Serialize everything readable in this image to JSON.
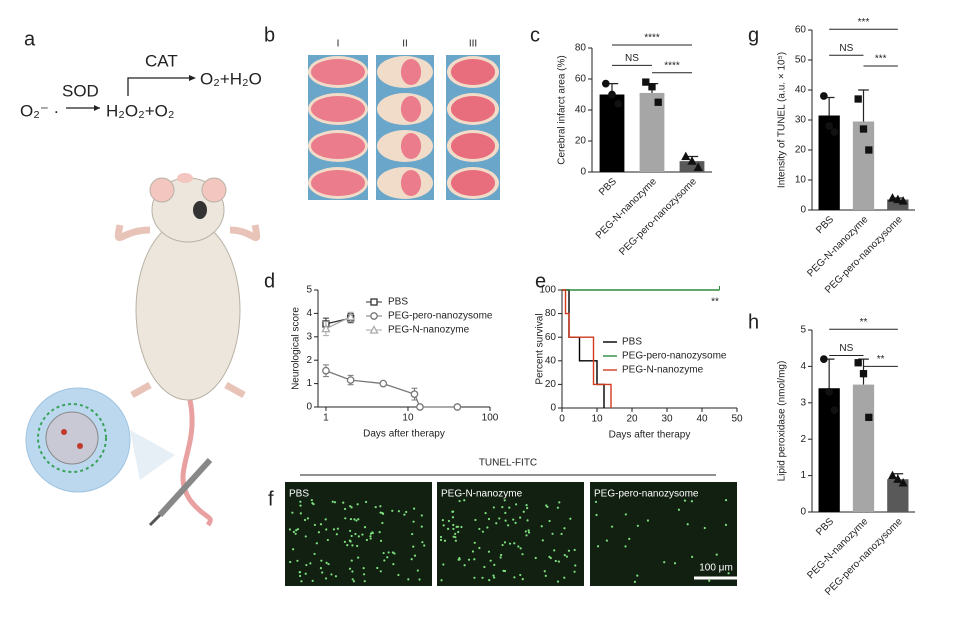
{
  "panel_labels": [
    "a",
    "b",
    "c",
    "d",
    "e",
    "f",
    "g",
    "h"
  ],
  "scheme": {
    "reactant": "O₂⁻ ·",
    "enzyme1": "SOD",
    "intermediate": "H₂O₂+O₂",
    "enzyme2": "CAT",
    "product": "O₂+H₂O"
  },
  "b_panel": {
    "groups": [
      "I",
      "II",
      "III"
    ]
  },
  "f_panel": {
    "title": "TUNEL-FITC",
    "labels": [
      "PBS",
      "PEG-N-nanozyme",
      "PEG-pero-nanozysome"
    ],
    "scale_bar": "100 μm"
  },
  "chart_data": [
    {
      "type": "bar",
      "ylabel": "Cerebral infarct area (%)",
      "categories": [
        "PBS",
        "PEG-N-nanozyme",
        "PEG-pero-nanozysome"
      ],
      "values": [
        50,
        51,
        7
      ],
      "errors": [
        7,
        6,
        3
      ],
      "points": [
        [
          57,
          50,
          44
        ],
        [
          58,
          55,
          45
        ],
        [
          10,
          7,
          3
        ]
      ],
      "colors": [
        "#000000",
        "#a6a6a6",
        "#595959"
      ],
      "annotations": [
        "NS",
        "****",
        "****"
      ],
      "ylim": [
        0,
        80
      ],
      "yticks": [
        0,
        20,
        40,
        60,
        80
      ]
    },
    {
      "type": "line",
      "xlabel": "Days after therapy",
      "ylabel": "Neurological score",
      "log_x": true,
      "xlim": [
        0.8,
        100
      ],
      "xticks": [
        1,
        10,
        100
      ],
      "ylim": [
        0,
        5
      ],
      "yticks": [
        0,
        1,
        2,
        3,
        4,
        5
      ],
      "series": [
        {
          "name": "PBS",
          "color": "#333333",
          "marker": "square",
          "x": [
            1,
            2
          ],
          "values": [
            3.55,
            3.8
          ],
          "errors": [
            0.25,
            0.2
          ]
        },
        {
          "name": "PEG-pero-nanozysome",
          "color": "#777777",
          "marker": "circle",
          "x": [
            1,
            2,
            5,
            12,
            14,
            40
          ],
          "values": [
            1.55,
            1.15,
            1.0,
            0.55,
            0,
            0
          ],
          "errors": [
            0.25,
            0.2,
            0.05,
            0.25,
            0,
            0
          ]
        },
        {
          "name": "PEG-N-nanozyme",
          "color": "#aaaaaa",
          "marker": "triangle",
          "x": [
            1,
            2
          ],
          "values": [
            3.35,
            3.85
          ],
          "errors": [
            0.3,
            0.2
          ]
        }
      ]
    },
    {
      "type": "step",
      "xlabel": "Days after therapy",
      "ylabel": "Percent survival",
      "annotation": "**",
      "xlim": [
        0,
        50
      ],
      "xticks": [
        0,
        10,
        20,
        30,
        40,
        50
      ],
      "ylim": [
        0,
        100
      ],
      "yticks": [
        0,
        20,
        40,
        60,
        80,
        100
      ],
      "series": [
        {
          "name": "PBS",
          "color": "#000000",
          "x": [
            0,
            2,
            5,
            10,
            12
          ],
          "values": [
            100,
            60,
            40,
            20,
            0
          ]
        },
        {
          "name": "PEG-pero-nanozysome",
          "color": "#2e8b3e",
          "x": [
            0,
            45
          ],
          "values": [
            100,
            100
          ]
        },
        {
          "name": "PEG-N-nanozyme",
          "color": "#d13a1f",
          "x": [
            0,
            1,
            2,
            9,
            14
          ],
          "values": [
            100,
            80,
            60,
            20,
            0
          ]
        }
      ]
    },
    {
      "type": "bar",
      "ylabel": "Intensity of TUNEL (a.u. × 10⁵)",
      "categories": [
        "PBS",
        "PEG-N-nanozyme",
        "PEG-pero-nanozysome"
      ],
      "values": [
        31.5,
        29.5,
        3.5
      ],
      "errors": [
        6,
        10.5,
        0.5
      ],
      "points": [
        [
          38,
          28,
          26
        ],
        [
          37,
          27,
          20
        ],
        [
          4,
          3.5,
          3
        ]
      ],
      "colors": [
        "#000000",
        "#a6a6a6",
        "#595959"
      ],
      "annotations": [
        "NS",
        "***",
        "***"
      ],
      "ylim": [
        0,
        60
      ],
      "yticks": [
        0,
        10,
        20,
        30,
        40,
        50,
        60
      ]
    },
    {
      "type": "bar",
      "ylabel": "Lipid peroxidase (nmol/mg)",
      "categories": [
        "PBS",
        "PEG-N-nanozyme",
        "PEG-pero-nanozysome"
      ],
      "values": [
        3.4,
        3.5,
        0.9
      ],
      "errors": [
        0.8,
        0.7,
        0.15
      ],
      "points": [
        [
          4.2,
          3.3,
          2.8
        ],
        [
          4.1,
          3.8,
          2.6
        ],
        [
          1.0,
          0.9,
          0.8
        ]
      ],
      "colors": [
        "#000000",
        "#a6a6a6",
        "#595959"
      ],
      "annotations": [
        "NS",
        "**",
        "**"
      ],
      "ylim": [
        0,
        5
      ],
      "yticks": [
        0,
        1,
        2,
        3,
        4,
        5
      ]
    }
  ]
}
